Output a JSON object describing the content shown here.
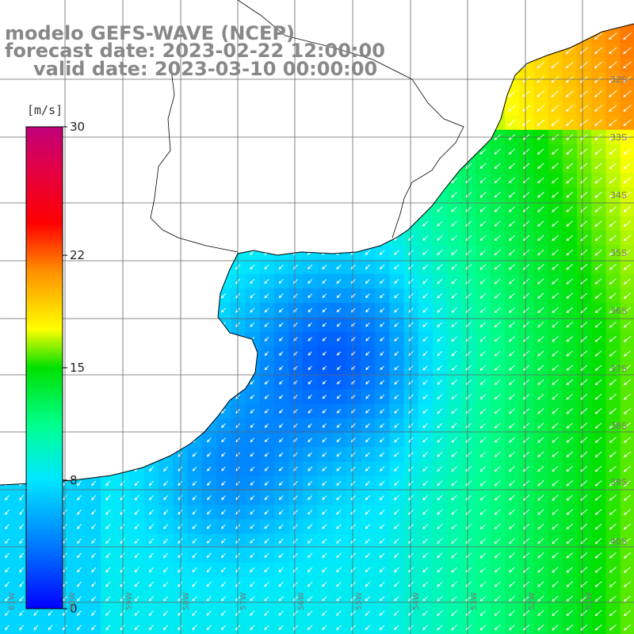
{
  "titles": {
    "model": "modelo GEFS-WAVE (NCEP)",
    "forecast": "forecast date: 2023-02-22 12:00:00",
    "valid": "valid date: 2023-03-10 00:00:00"
  },
  "colorbar": {
    "unit": "[m/s]",
    "ticks": [
      "30",
      "22",
      "15",
      "8",
      "0"
    ],
    "tick_values": [
      30,
      22,
      15,
      8,
      0
    ],
    "range": [
      0,
      30
    ],
    "colors": [
      "#0000ff",
      "#0070ff",
      "#00d8ff",
      "#00ffa0",
      "#00ff00",
      "#ffff00",
      "#ff9000",
      "#ff0000",
      "#e0004a",
      "#c0007a"
    ]
  },
  "latitude_labels": [
    "32S",
    "33S",
    "34S",
    "35S",
    "36S",
    "37S",
    "38S",
    "39S",
    "40S"
  ],
  "longitude_labels": [
    "61W",
    "60W",
    "59W",
    "58W",
    "57W",
    "56W",
    "55W",
    "54W",
    "53W",
    "52W",
    "51W"
  ],
  "map": {
    "type": "wind-speed-field",
    "variable": "wind speed",
    "units": "m/s",
    "land_color": "#ffffff",
    "coastline_color": "#000000",
    "grid_color": "#555555"
  }
}
